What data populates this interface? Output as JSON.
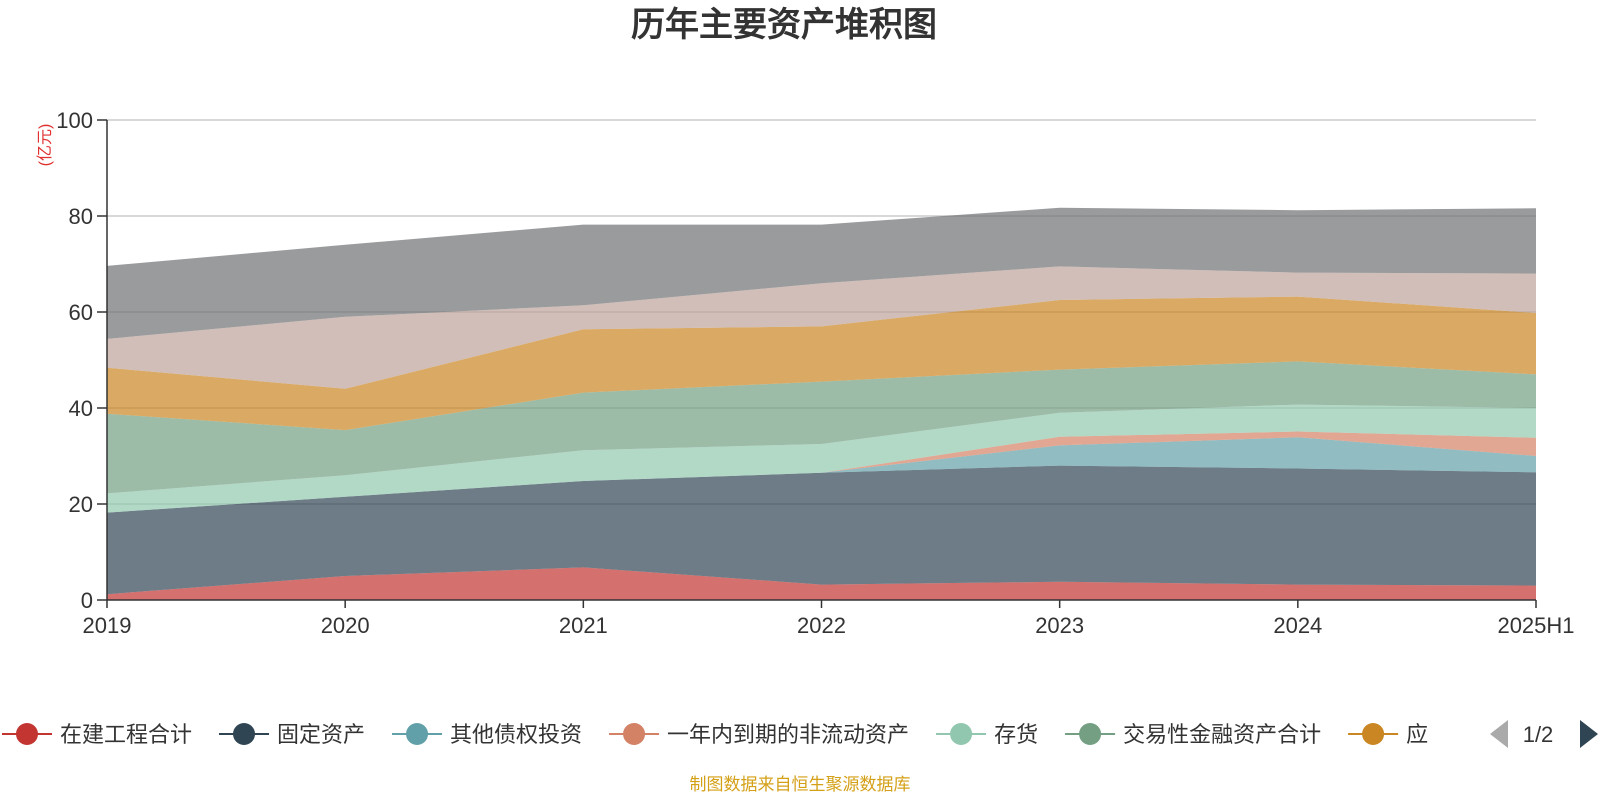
{
  "chart_data": {
    "type": "area",
    "stacked": true,
    "title": "历年主要资产堆积图",
    "unit_label": "(亿元)",
    "x": [
      "2019",
      "2020",
      "2021",
      "2022",
      "2023",
      "2024",
      "2025H1"
    ],
    "ylim": [
      0,
      100
    ],
    "yticks": [
      0,
      20,
      40,
      60,
      80,
      100
    ],
    "grid": true,
    "legend_position": "bottom",
    "legend_page": "1/2",
    "series": [
      {
        "name": "在建工程合计",
        "color": "#c23531",
        "values": [
          1.2,
          5.0,
          6.8,
          3.2,
          3.8,
          3.2,
          3.0
        ]
      },
      {
        "name": "固定资产",
        "color": "#2f4554",
        "values": [
          17.0,
          16.5,
          18.0,
          23.3,
          24.2,
          24.2,
          23.6
        ]
      },
      {
        "name": "其他债权投资",
        "color": "#61a0a8",
        "values": [
          0.0,
          0.0,
          0.0,
          0.0,
          4.2,
          6.5,
          3.4
        ]
      },
      {
        "name": "一年内到期的非流动资产",
        "color": "#d48265",
        "values": [
          0.0,
          0.0,
          0.0,
          0.0,
          1.8,
          1.2,
          3.8
        ]
      },
      {
        "name": "存货",
        "color": "#91c7ae",
        "values": [
          4.0,
          4.5,
          6.4,
          6.0,
          5.0,
          5.6,
          6.2
        ]
      },
      {
        "name": "交易性金融资产合计",
        "color": "#749f83",
        "values": [
          16.6,
          9.4,
          12.0,
          13.0,
          9.0,
          9.0,
          7.0
        ]
      },
      {
        "name": "应",
        "color": "#ca8622",
        "values": [
          9.6,
          8.6,
          13.2,
          11.5,
          14.5,
          13.5,
          12.8
        ]
      },
      {
        "name": "",
        "color": "#bda29a",
        "values": [
          6.0,
          15.0,
          5.0,
          9.0,
          7.0,
          5.0,
          8.2
        ]
      },
      {
        "name": "",
        "color": "#6e7074",
        "values": [
          15.2,
          15.0,
          16.8,
          12.2,
          12.2,
          13.0,
          13.6
        ]
      }
    ]
  },
  "footer": {
    "source": "制图数据来自恒生聚源数据库"
  }
}
